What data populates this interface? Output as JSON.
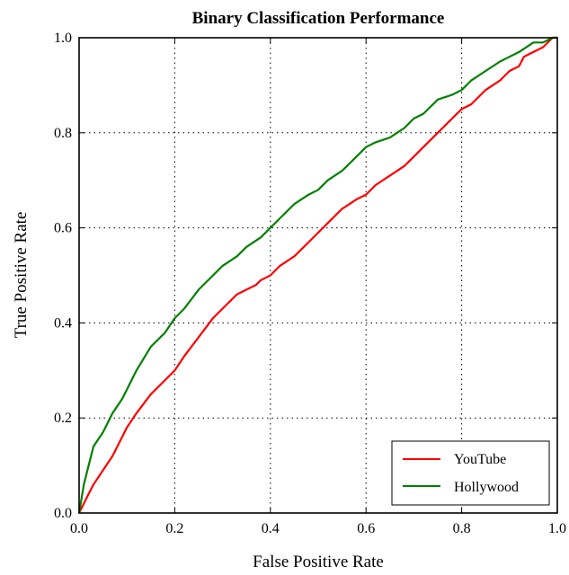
{
  "chart_data": {
    "type": "line",
    "title": "Binary Classification Performance",
    "xlabel": "False Positive Rate",
    "ylabel": "True Positive Rate",
    "xlim": [
      0.0,
      1.0
    ],
    "ylim": [
      0.0,
      1.0
    ],
    "x_ticks": [
      "0.0",
      "0.2",
      "0.4",
      "0.6",
      "0.8",
      "1.0"
    ],
    "y_ticks": [
      "0.0",
      "0.2",
      "0.4",
      "0.6",
      "0.8",
      "1.0"
    ],
    "grid": true,
    "legend_position": "bottom-right",
    "series": [
      {
        "name": "YouTube",
        "color": "#ff0000",
        "x": [
          0.0,
          0.01,
          0.02,
          0.03,
          0.05,
          0.07,
          0.09,
          0.1,
          0.12,
          0.15,
          0.18,
          0.2,
          0.22,
          0.25,
          0.28,
          0.3,
          0.33,
          0.35,
          0.37,
          0.38,
          0.4,
          0.42,
          0.45,
          0.48,
          0.5,
          0.52,
          0.55,
          0.58,
          0.6,
          0.62,
          0.65,
          0.68,
          0.7,
          0.72,
          0.75,
          0.78,
          0.8,
          0.82,
          0.85,
          0.88,
          0.9,
          0.92,
          0.93,
          0.95,
          0.97,
          0.99,
          1.0
        ],
        "y": [
          0.0,
          0.02,
          0.04,
          0.06,
          0.09,
          0.12,
          0.16,
          0.18,
          0.21,
          0.25,
          0.28,
          0.3,
          0.33,
          0.37,
          0.41,
          0.43,
          0.46,
          0.47,
          0.48,
          0.49,
          0.5,
          0.52,
          0.54,
          0.57,
          0.59,
          0.61,
          0.64,
          0.66,
          0.67,
          0.69,
          0.71,
          0.73,
          0.75,
          0.77,
          0.8,
          0.83,
          0.85,
          0.86,
          0.89,
          0.91,
          0.93,
          0.94,
          0.96,
          0.97,
          0.98,
          1.0,
          1.0
        ]
      },
      {
        "name": "Hollywood",
        "color": "#008000",
        "x": [
          0.0,
          0.01,
          0.02,
          0.03,
          0.05,
          0.07,
          0.09,
          0.1,
          0.12,
          0.15,
          0.18,
          0.2,
          0.22,
          0.25,
          0.28,
          0.3,
          0.33,
          0.35,
          0.38,
          0.4,
          0.42,
          0.45,
          0.48,
          0.5,
          0.52,
          0.55,
          0.58,
          0.6,
          0.62,
          0.65,
          0.68,
          0.7,
          0.72,
          0.75,
          0.78,
          0.8,
          0.82,
          0.85,
          0.88,
          0.9,
          0.92,
          0.95,
          0.97,
          0.99,
          1.0
        ],
        "y": [
          0.0,
          0.06,
          0.1,
          0.14,
          0.17,
          0.21,
          0.24,
          0.26,
          0.3,
          0.35,
          0.38,
          0.41,
          0.43,
          0.47,
          0.5,
          0.52,
          0.54,
          0.56,
          0.58,
          0.6,
          0.62,
          0.65,
          0.67,
          0.68,
          0.7,
          0.72,
          0.75,
          0.77,
          0.78,
          0.79,
          0.81,
          0.83,
          0.84,
          0.87,
          0.88,
          0.89,
          0.91,
          0.93,
          0.95,
          0.96,
          0.97,
          0.99,
          0.99,
          1.0,
          1.0
        ]
      }
    ]
  }
}
